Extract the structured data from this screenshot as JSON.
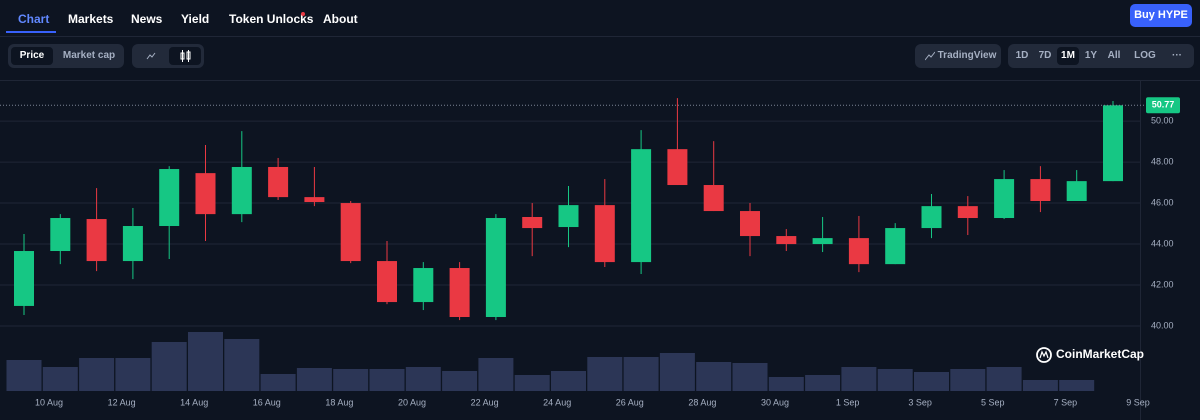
{
  "nav": {
    "tabs": [
      "Chart",
      "Markets",
      "News",
      "Yield",
      "Token Unlocks",
      "About"
    ],
    "button": "Buy HYPE"
  },
  "toolbar": {
    "modes": [
      "Price",
      "Market cap"
    ],
    "tradingview": "TradingView",
    "ranges": [
      "1D",
      "7D",
      "1M",
      "1Y",
      "All",
      "LOG"
    ],
    "more": "···"
  },
  "chart_data": {
    "type": "candlestick",
    "categories": [
      "10 Aug",
      null,
      "12 Aug",
      null,
      "14 Aug",
      null,
      "16 Aug",
      null,
      "18 Aug",
      null,
      "20 Aug",
      null,
      "22 Aug",
      null,
      "24 Aug",
      null,
      "26 Aug",
      null,
      "28 Aug",
      null,
      "30 Aug",
      null,
      "1 Sep",
      null,
      "3 Sep",
      null,
      "5 Sep",
      null,
      "7 Sep",
      null,
      "9 Sep"
    ],
    "open": [
      40.98,
      43.66,
      45.22,
      43.17,
      44.88,
      47.46,
      45.46,
      47.76,
      46.29,
      46.0,
      43.17,
      41.17,
      42.83,
      40.44,
      45.32,
      44.83,
      45.9,
      43.12,
      48.63,
      46.88,
      45.61,
      44.39,
      44.0,
      44.29,
      43.02,
      44.78,
      45.85,
      45.27,
      47.17,
      46.1,
      47.07
    ],
    "high": [
      44.49,
      45.46,
      46.73,
      45.76,
      47.8,
      48.83,
      49.51,
      48.2,
      47.76,
      46.1,
      44.15,
      43.12,
      43.12,
      45.46,
      46.0,
      46.83,
      47.17,
      49.56,
      51.12,
      49.02,
      46.0,
      44.73,
      45.32,
      45.37,
      45.02,
      46.44,
      46.34,
      47.61,
      47.8,
      47.61,
      50.98
    ],
    "low": [
      40.54,
      43.02,
      42.68,
      42.29,
      43.27,
      44.15,
      45.07,
      46.15,
      45.85,
      43.07,
      41.07,
      40.78,
      40.29,
      40.29,
      43.41,
      43.85,
      42.88,
      42.54,
      46.88,
      45.61,
      43.41,
      43.66,
      43.61,
      42.63,
      43.02,
      44.29,
      44.44,
      45.22,
      45.56,
      46.1,
      47.07
    ],
    "close": [
      43.66,
      45.27,
      43.17,
      44.88,
      47.66,
      45.46,
      47.76,
      46.29,
      46.05,
      43.17,
      41.17,
      42.83,
      40.44,
      45.27,
      44.78,
      45.9,
      43.12,
      48.63,
      46.88,
      45.61,
      44.39,
      44.0,
      44.29,
      43.02,
      44.78,
      45.85,
      45.27,
      47.17,
      46.1,
      47.07,
      50.77
    ],
    "volume": [
      31,
      24,
      33,
      33,
      49,
      59,
      52,
      17,
      23,
      22,
      22,
      24,
      20,
      33,
      16,
      20,
      34,
      34,
      38,
      29,
      28,
      14,
      16,
      24,
      22,
      19,
      22,
      24,
      11,
      11,
      null
    ],
    "up_color": "#16c784",
    "down_color": "#ea3943",
    "volume_color": "#2c3656",
    "ylim": [
      36.83,
      51.76
    ],
    "yticks": [
      {
        "value": 40,
        "label": "40.00"
      },
      {
        "value": 42,
        "label": "42.00"
      },
      {
        "value": 44,
        "label": "44.00"
      },
      {
        "value": 46,
        "label": "46.00"
      },
      {
        "value": 48,
        "label": "48.00"
      },
      {
        "value": 50,
        "label": "50.00"
      }
    ],
    "grid": true,
    "last_price": 50.77,
    "watermark": "CoinMarketCap"
  }
}
